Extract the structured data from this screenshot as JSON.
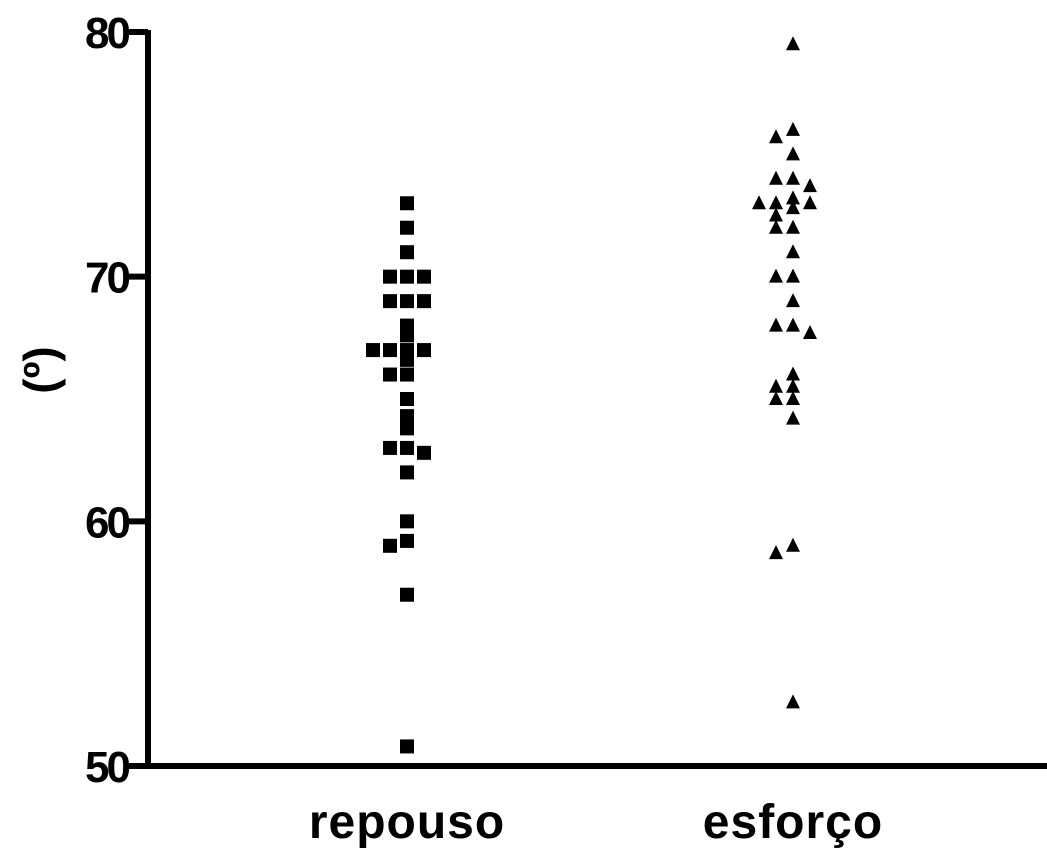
{
  "chart_data": {
    "type": "scatter",
    "title": "",
    "xlabel": "",
    "ylabel": "(º)",
    "ylim": [
      50,
      80
    ],
    "yticks": [
      50,
      60,
      70,
      80
    ],
    "ytick_labels": [
      "50",
      "60",
      "70",
      "80"
    ],
    "categories": [
      "repouso",
      "esforço"
    ],
    "grid": false,
    "legend": "none",
    "series": [
      {
        "category": "repouso",
        "marker": "square",
        "color": "#000000",
        "values": [
          73,
          72,
          71,
          70,
          70,
          70,
          69,
          69,
          69,
          68,
          67.6,
          67,
          67,
          67,
          67,
          66.6,
          66,
          66,
          65,
          64.3,
          63.8,
          63,
          63,
          62.8,
          62,
          60,
          59.2,
          59,
          57,
          50.8
        ]
      },
      {
        "category": "esforço",
        "marker": "triangle",
        "color": "#000000",
        "values": [
          79.5,
          76,
          75.7,
          75,
          74,
          74,
          73.7,
          73.2,
          73,
          73,
          73,
          72.8,
          72.5,
          72,
          72,
          71,
          70,
          70,
          69,
          68,
          68,
          67.7,
          66,
          65.5,
          65.5,
          65,
          65,
          64.2,
          59,
          58.7,
          52.6
        ]
      }
    ]
  }
}
